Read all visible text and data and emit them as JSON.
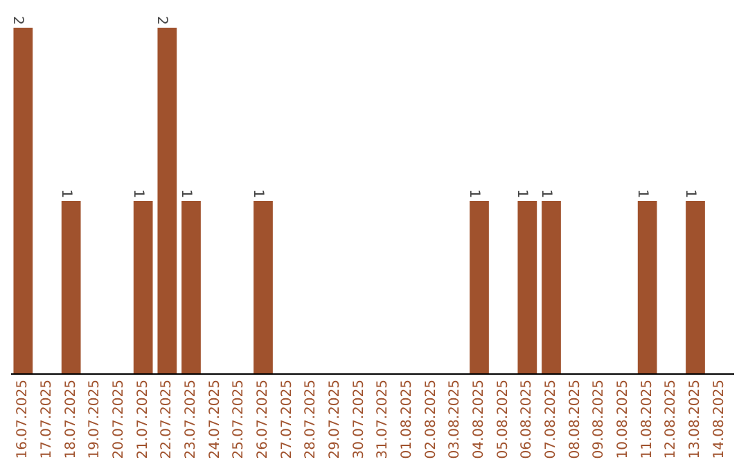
{
  "chart_data": {
    "type": "bar",
    "categories": [
      "16.07.2025",
      "17.07.2025",
      "18.07.2025",
      "19.07.2025",
      "20.07.2025",
      "21.07.2025",
      "22.07.2025",
      "23.07.2025",
      "24.07.2025",
      "25.07.2025",
      "26.07.2025",
      "27.07.2025",
      "28.07.2025",
      "29.07.2025",
      "30.07.2025",
      "31.07.2025",
      "01.08.2025",
      "02.08.2025",
      "03.08.2025",
      "04.08.2025",
      "05.08.2025",
      "06.08.2025",
      "07.08.2025",
      "08.08.2025",
      "09.08.2025",
      "10.08.2025",
      "11.08.2025",
      "12.08.2025",
      "13.08.2025",
      "14.08.2025"
    ],
    "values": [
      2,
      0,
      1,
      0,
      0,
      1,
      2,
      1,
      0,
      0,
      1,
      0,
      0,
      0,
      0,
      0,
      0,
      0,
      0,
      1,
      0,
      1,
      1,
      0,
      0,
      0,
      1,
      0,
      1,
      0
    ],
    "value_labels": [
      "2",
      null,
      "1",
      null,
      null,
      "1",
      "2",
      "1",
      null,
      null,
      "1",
      null,
      null,
      null,
      null,
      null,
      null,
      null,
      null,
      "1",
      null,
      "1",
      "1",
      null,
      null,
      null,
      "1",
      null,
      "1",
      null
    ],
    "color": "#a0522d"
  }
}
